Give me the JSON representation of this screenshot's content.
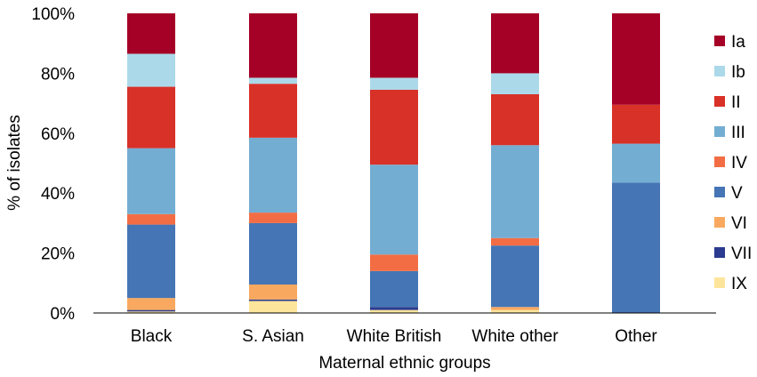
{
  "chart_data": {
    "type": "bar",
    "stacked": true,
    "percent_stacked": true,
    "categories": [
      "Black",
      "S. Asian",
      "White British",
      "White other",
      "Other"
    ],
    "xlabel": "Maternal ethnic groups",
    "ylabel": "% of isolates",
    "ylim": [
      0,
      100
    ],
    "yticks": [
      "0%",
      "20%",
      "40%",
      "60%",
      "80%",
      "100%"
    ],
    "grid": false,
    "legend_position": "right",
    "series": [
      {
        "name": "IX",
        "color": "#fde59c",
        "values": [
          0.5,
          4,
          1,
          1,
          0
        ]
      },
      {
        "name": "VII",
        "color": "#2b3b8f",
        "values": [
          0.5,
          0.5,
          1,
          0,
          0
        ]
      },
      {
        "name": "VI",
        "color": "#f8a95f",
        "values": [
          4,
          5,
          0,
          1,
          0
        ]
      },
      {
        "name": "V",
        "color": "#4575b5",
        "values": [
          24.5,
          20.5,
          12,
          20.5,
          43.5
        ]
      },
      {
        "name": "IV",
        "color": "#f36d44",
        "values": [
          3.5,
          3.5,
          5.5,
          2.5,
          0
        ]
      },
      {
        "name": "III",
        "color": "#74add2",
        "values": [
          22,
          25,
          30,
          31,
          13
        ]
      },
      {
        "name": "II",
        "color": "#d83128",
        "values": [
          20.5,
          18,
          25,
          17,
          13
        ]
      },
      {
        "name": "Ib",
        "color": "#abd9e9",
        "values": [
          11,
          2,
          4,
          7,
          0
        ]
      },
      {
        "name": "Ia",
        "color": "#a50026",
        "values": [
          13.5,
          21.5,
          21.5,
          20,
          30.5
        ]
      }
    ],
    "legend_order": [
      "Ia",
      "Ib",
      "II",
      "III",
      "IV",
      "V",
      "VI",
      "VII",
      "IX"
    ]
  }
}
